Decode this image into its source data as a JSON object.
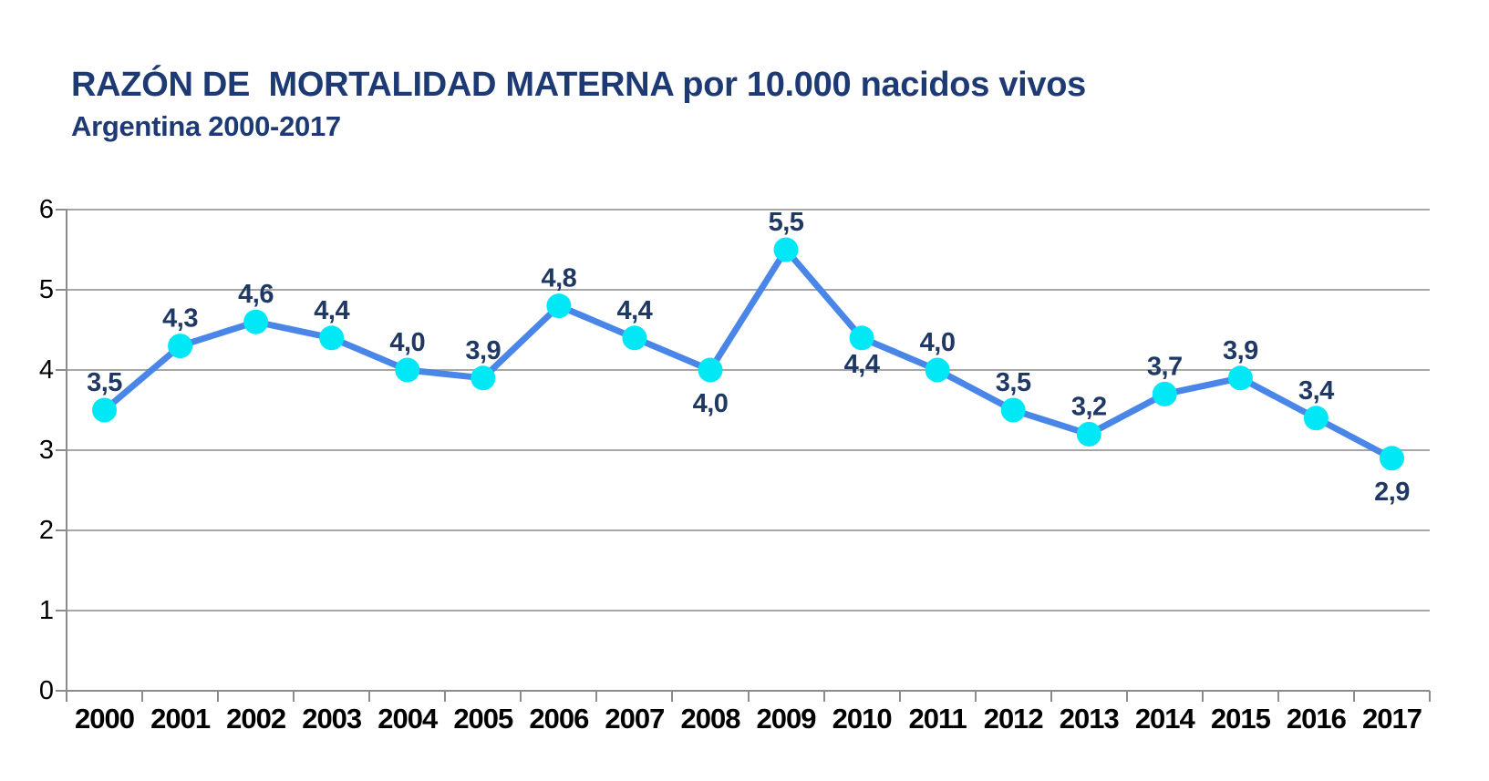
{
  "header": {
    "title": "RAZÓN DE  MORTALIDAD MATERNA por 10.000 nacidos vivos",
    "subtitle": "Argentina 2000-2017"
  },
  "chart_data": {
    "type": "line",
    "title": "RAZÓN DE  MORTALIDAD MATERNA por 10.000 nacidos vivos",
    "subtitle": "Argentina 2000-2017",
    "categories": [
      "2000",
      "2001",
      "2002",
      "2003",
      "2004",
      "2005",
      "2006",
      "2007",
      "2008",
      "2009",
      "2010",
      "2011",
      "2012",
      "2013",
      "2014",
      "2015",
      "2016",
      "2017"
    ],
    "values": [
      3.5,
      4.3,
      4.6,
      4.4,
      4.0,
      3.9,
      4.8,
      4.4,
      4.0,
      5.5,
      4.4,
      4.0,
      3.5,
      3.2,
      3.7,
      3.9,
      3.4,
      2.9
    ],
    "point_labels": [
      "3,5",
      "4,3",
      "4,6",
      "4,4",
      "4,0",
      "3,9",
      "4,8",
      "4,4",
      "4,0",
      "5,5",
      "4,4",
      "4,0",
      "3,5",
      "3,2",
      "3,7",
      "3,9",
      "3,4",
      "2,9"
    ],
    "label_positions": [
      "above",
      "above",
      "above",
      "above",
      "above",
      "above",
      "above",
      "above",
      "below",
      "above",
      "below-tight",
      "above",
      "above",
      "above",
      "above",
      "above",
      "above",
      "below"
    ],
    "xlabel": "",
    "ylabel": "",
    "ylim": [
      0,
      6
    ],
    "yticks": [
      0,
      1,
      2,
      3,
      4,
      5,
      6
    ],
    "grid": "horizontal",
    "legend": "none",
    "colors": {
      "title": "#1e3a74",
      "line": "#4a86e8",
      "marker": "#00e8f5",
      "data_label": "#1f3864",
      "axis_text": "#000000",
      "gridline": "#a6a6a6",
      "axis_line": "#8c8c8c"
    }
  }
}
